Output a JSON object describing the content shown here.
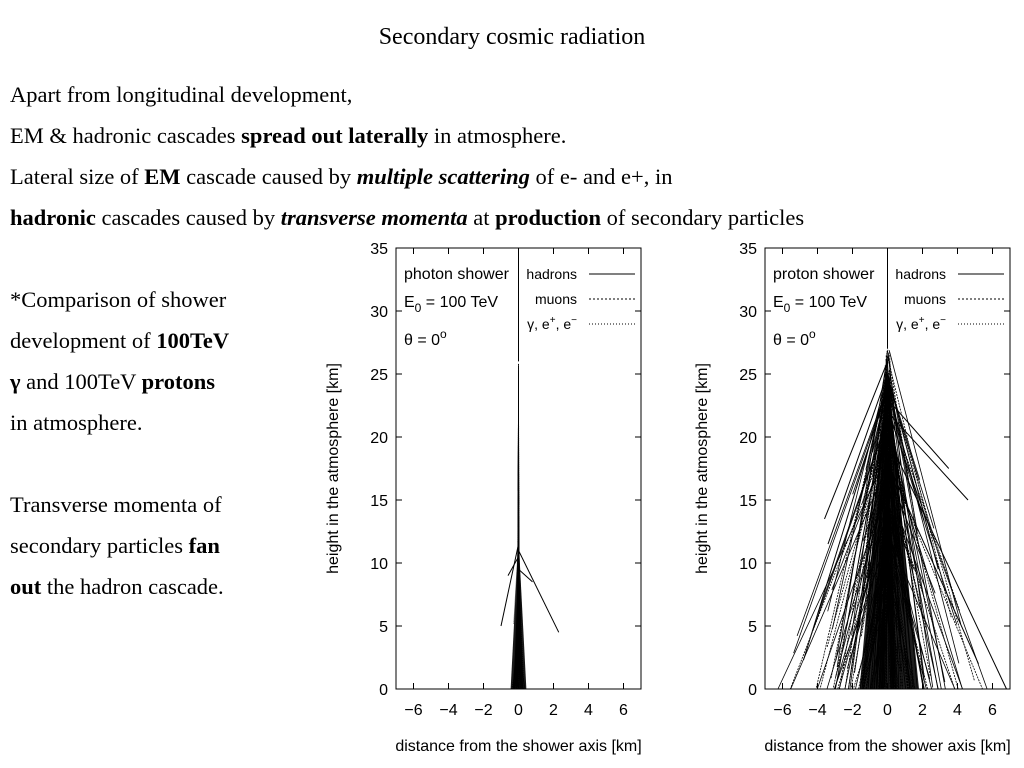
{
  "slide": {
    "title": "Secondary cosmic radiation",
    "intro": {
      "line1": "Apart from longitudinal development,",
      "line2": {
        "a": "EM & hadronic cascades ",
        "b": "spread out laterally",
        "c": " in atmosphere."
      },
      "line3": {
        "a": "Lateral size of ",
        "b": "EM",
        "c": " cascade caused by ",
        "d": "multiple scattering",
        "e": " of e- and e+, in"
      },
      "line4": {
        "a": "hadronic",
        "b": " cascades caused by ",
        "c": "transverse momenta",
        "d": " at ",
        "e": "production",
        "f": " of secondary particles"
      }
    },
    "side": {
      "l1": "*Comparison of shower",
      "l2": {
        "a": "development of ",
        "b": "100TeV"
      },
      "l3": {
        "a": "γ",
        "b": " and 100TeV ",
        "c": "protons"
      },
      "l4": "in atmosphere.",
      "l5": "Transverse momenta of",
      "l6": {
        "a": "secondary particles ",
        "b": "fan"
      },
      "l7": {
        "a": "out",
        "b": " the hadron cascade."
      }
    }
  },
  "chart_data": [
    {
      "type": "scatter",
      "title": "photon shower",
      "annotations": [
        "E0 = 100 TeV",
        "θ = 0°"
      ],
      "legend": [
        "hadrons",
        "muons",
        "γ, e+, e−"
      ],
      "legend_position": "top-right",
      "xlabel": "distance from the shower axis [km]",
      "ylabel": "height in the atmosphere [km]",
      "xlim": [
        -7,
        7
      ],
      "ylim": [
        0,
        35
      ],
      "xticks": [
        -6,
        -4,
        -2,
        0,
        2,
        4,
        6
      ],
      "yticks": [
        0,
        5,
        10,
        15,
        20,
        25,
        30,
        35
      ],
      "first_interaction_height": 26,
      "spread_tracks": [
        {
          "x0": 0,
          "y0": 11.5,
          "x1": -1.0,
          "y1": 5.0
        },
        {
          "x0": 0,
          "y0": 11.0,
          "x1": 2.3,
          "y1": 4.5
        },
        {
          "x0": 0,
          "y0": 10.5,
          "x1": -0.6,
          "y1": 9.0
        },
        {
          "x0": 0,
          "y0": 9.5,
          "x1": 0.8,
          "y1": 8.5
        }
      ]
    },
    {
      "type": "scatter",
      "title": "proton shower",
      "annotations": [
        "E0 = 100 TeV",
        "θ = 0°"
      ],
      "legend": [
        "hadrons",
        "muons",
        "γ, e+, e−"
      ],
      "legend_position": "top-right",
      "xlabel": "distance from the shower axis [km]",
      "ylabel": "height in the atmosphere [km]",
      "xlim": [
        -7,
        7
      ],
      "ylim": [
        0,
        35
      ],
      "xticks": [
        -6,
        -4,
        -2,
        0,
        2,
        4,
        6
      ],
      "yticks": [
        0,
        5,
        10,
        15,
        20,
        25,
        30,
        35
      ],
      "first_interaction_height": 27,
      "spread_tracks": [
        {
          "x0": 0,
          "y0": 26,
          "x1": -3.6,
          "y1": 13.5
        },
        {
          "x0": 0,
          "y0": 25,
          "x1": -3.4,
          "y1": 11.5
        },
        {
          "x0": 0,
          "y0": 24,
          "x1": -4.8,
          "y1": 2.3
        },
        {
          "x0": 0,
          "y0": 23,
          "x1": 3.5,
          "y1": 17.5
        },
        {
          "x0": 0,
          "y0": 22,
          "x1": 4.6,
          "y1": 15.0
        },
        {
          "x0": 0,
          "y0": 25,
          "x1": 2.9,
          "y1": 9.5
        },
        {
          "x0": 0,
          "y0": 20,
          "x1": 6.8,
          "y1": 0
        },
        {
          "x0": 0,
          "y0": 18,
          "x1": 5.2,
          "y1": 2.0
        }
      ]
    }
  ]
}
